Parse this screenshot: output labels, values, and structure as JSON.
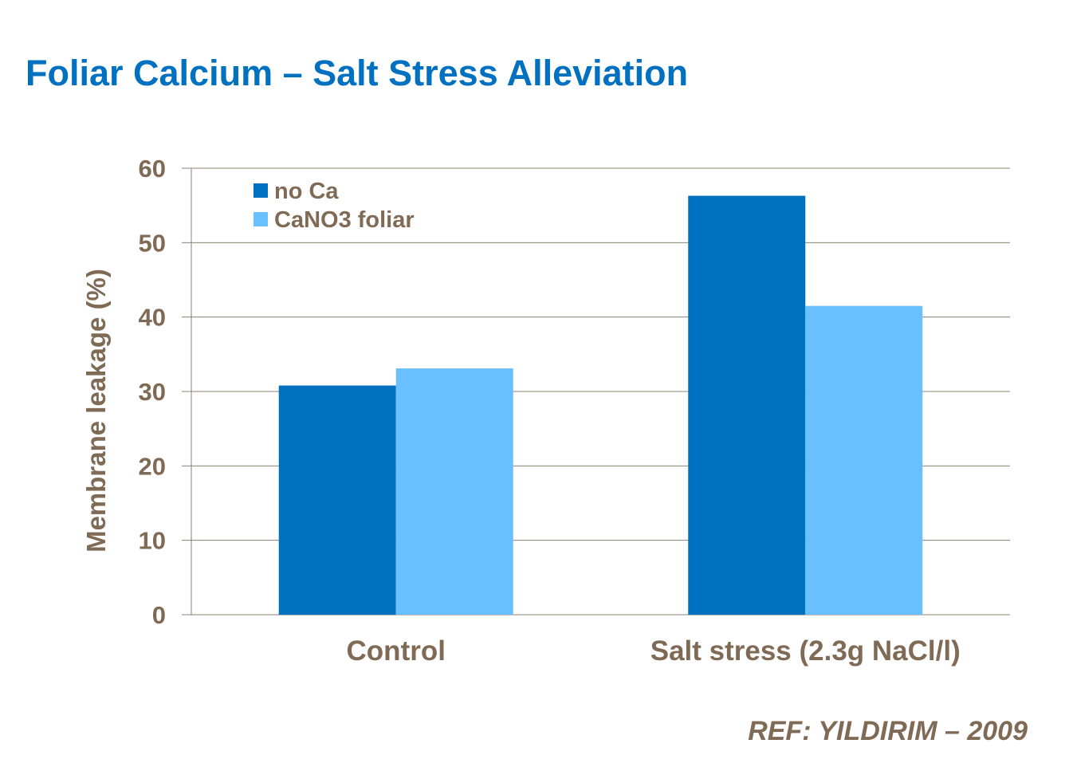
{
  "chart_data": {
    "type": "bar",
    "title": "Foliar Calcium – Salt Stress Alleviation",
    "xlabel": "",
    "ylabel": "Membrane leakage (%)",
    "ylim": [
      0,
      60
    ],
    "yticks": [
      0,
      10,
      20,
      30,
      40,
      50,
      60
    ],
    "grid": true,
    "legend_position": "top-left",
    "categories": [
      "Control",
      "Salt stress (2.3g NaCl/l)"
    ],
    "series": [
      {
        "name": "no Ca",
        "color": "#0070C0",
        "values": [
          30.8,
          56.3
        ]
      },
      {
        "name": "CaNO3 foliar",
        "color": "#69BFFF",
        "values": [
          33.1,
          41.5
        ]
      }
    ]
  },
  "reference": "REF: YILDIRIM – 2009"
}
